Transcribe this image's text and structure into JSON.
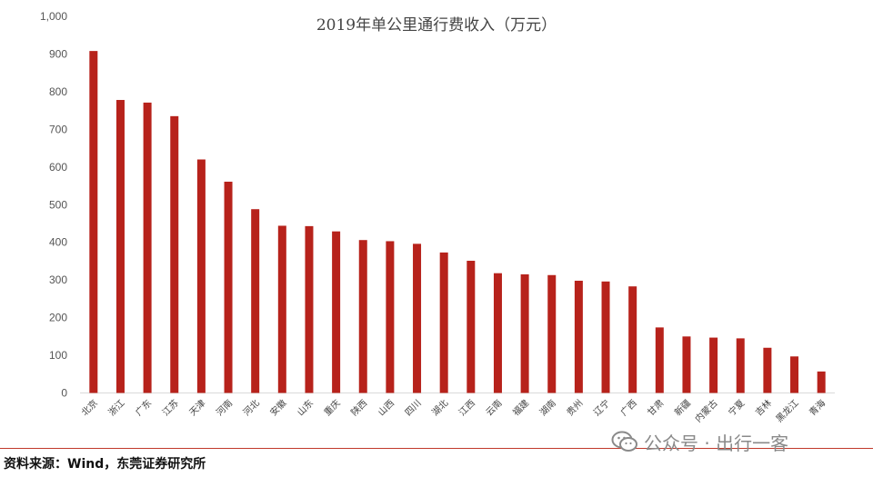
{
  "chart_data": {
    "type": "bar",
    "title": "2019年单公里通行费收入（万元）",
    "categories": [
      "北京",
      "浙江",
      "广东",
      "江苏",
      "天津",
      "河南",
      "河北",
      "安徽",
      "山东",
      "重庆",
      "陕西",
      "山西",
      "四川",
      "湖北",
      "江西",
      "云南",
      "福建",
      "湖南",
      "贵州",
      "辽宁",
      "广西",
      "甘肃",
      "新疆",
      "内蒙古",
      "宁夏",
      "吉林",
      "黑龙江",
      "青海"
    ],
    "values": [
      908,
      778,
      771,
      735,
      620,
      561,
      488,
      444,
      443,
      429,
      406,
      403,
      396,
      373,
      351,
      318,
      315,
      313,
      298,
      296,
      283,
      174,
      150,
      147,
      145,
      120,
      97,
      57
    ],
    "ylim": [
      0,
      1000
    ],
    "yticks": [
      "0",
      "100",
      "200",
      "300",
      "400",
      "500",
      "600",
      "700",
      "800",
      "900",
      "1,000"
    ],
    "bar_color": "#b7221b",
    "grid": false,
    "legend": "none"
  },
  "footer": {
    "source": "资料来源：Wind，东莞证券研究所"
  },
  "watermark": {
    "text": "公众号 · 出行一客",
    "icon": "wechat-icon",
    "color": "#8a8a8a"
  }
}
